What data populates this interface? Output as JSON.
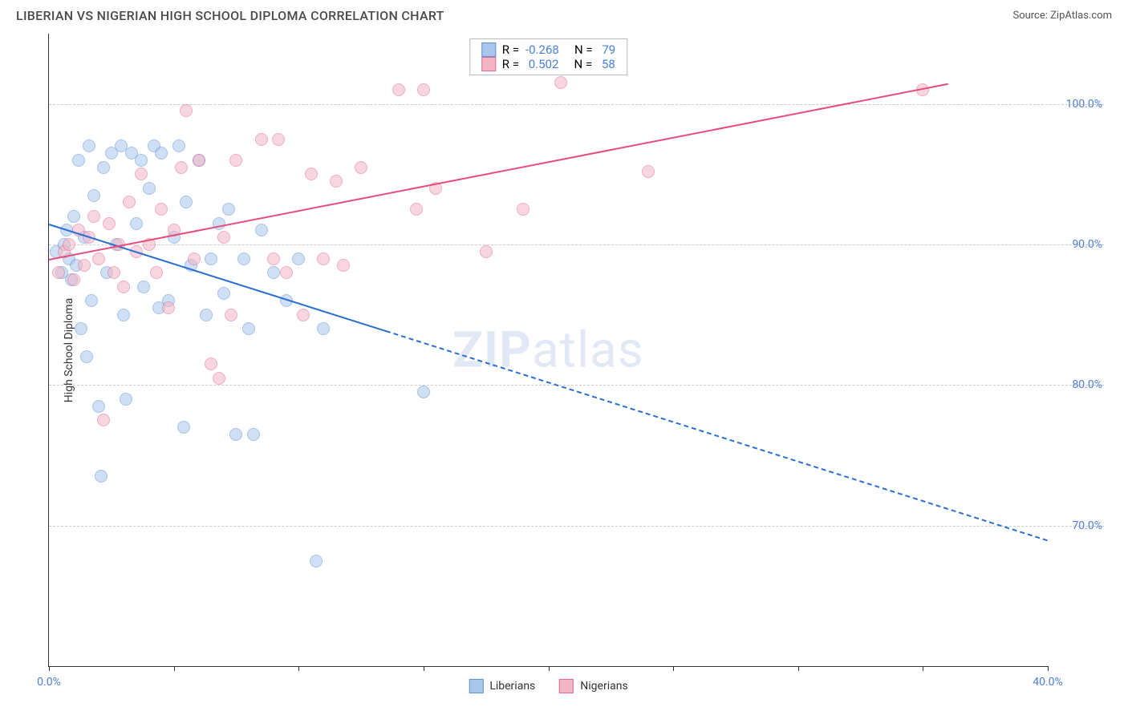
{
  "header": {
    "title": "LIBERIAN VS NIGERIAN HIGH SCHOOL DIPLOMA CORRELATION CHART",
    "source": "Source: ZipAtlas.com"
  },
  "chart": {
    "type": "scatter",
    "background_color": "#ffffff",
    "grid_color": "#cccccc",
    "axis_color": "#333333",
    "tick_label_color": "#4a80d6",
    "yaxis_title": "High School Diploma",
    "xlim": [
      0,
      40
    ],
    "ylim": [
      60,
      105
    ],
    "xticks": [
      0,
      5,
      10,
      15,
      20,
      25,
      30,
      35,
      40
    ],
    "xticklabels_shown": {
      "0": "0.0%",
      "40": "40.0%"
    },
    "yticks": [
      70,
      80,
      90,
      100
    ],
    "yticklabels": [
      "70.0%",
      "80.0%",
      "90.0%",
      "100.0%"
    ],
    "marker_radius": 8,
    "marker_opacity": 0.55,
    "series": [
      {
        "name": "Liberians",
        "fill": "#a8c5ec",
        "stroke": "#5f93d6",
        "R": "-0.268",
        "N": "79",
        "trend": {
          "x1": 0,
          "y1": 91.5,
          "x2": 40,
          "y2": 69.0,
          "solid_until_x": 13.5,
          "color": "#2b6fd0",
          "width": 2
        },
        "points": [
          [
            0.3,
            89.5
          ],
          [
            0.5,
            88.0
          ],
          [
            0.6,
            90.0
          ],
          [
            0.7,
            91.0
          ],
          [
            0.8,
            89.0
          ],
          [
            0.9,
            87.5
          ],
          [
            1.0,
            92.0
          ],
          [
            1.1,
            88.5
          ],
          [
            1.2,
            96.0
          ],
          [
            1.3,
            84.0
          ],
          [
            1.4,
            90.5
          ],
          [
            1.5,
            82.0
          ],
          [
            1.6,
            97.0
          ],
          [
            1.7,
            86.0
          ],
          [
            1.8,
            93.5
          ],
          [
            2.0,
            78.5
          ],
          [
            2.1,
            73.5
          ],
          [
            2.2,
            95.5
          ],
          [
            2.3,
            88.0
          ],
          [
            2.5,
            96.5
          ],
          [
            2.7,
            90.0
          ],
          [
            2.9,
            97.0
          ],
          [
            3.0,
            85.0
          ],
          [
            3.1,
            79.0
          ],
          [
            3.3,
            96.5
          ],
          [
            3.5,
            91.5
          ],
          [
            3.7,
            96.0
          ],
          [
            3.8,
            87.0
          ],
          [
            4.0,
            94.0
          ],
          [
            4.2,
            97.0
          ],
          [
            4.4,
            85.5
          ],
          [
            4.5,
            96.5
          ],
          [
            4.8,
            86.0
          ],
          [
            5.0,
            90.5
          ],
          [
            5.2,
            97.0
          ],
          [
            5.4,
            77.0
          ],
          [
            5.5,
            93.0
          ],
          [
            5.7,
            88.5
          ],
          [
            6.0,
            96.0
          ],
          [
            6.3,
            85.0
          ],
          [
            6.5,
            89.0
          ],
          [
            6.8,
            91.5
          ],
          [
            7.0,
            86.5
          ],
          [
            7.2,
            92.5
          ],
          [
            7.5,
            76.5
          ],
          [
            7.8,
            89.0
          ],
          [
            8.0,
            84.0
          ],
          [
            8.2,
            76.5
          ],
          [
            8.5,
            91.0
          ],
          [
            9.0,
            88.0
          ],
          [
            9.5,
            86.0
          ],
          [
            10.0,
            89.0
          ],
          [
            10.7,
            67.5
          ],
          [
            11.0,
            84.0
          ],
          [
            15.0,
            79.5
          ]
        ]
      },
      {
        "name": "Nigerians",
        "fill": "#f2b6c6",
        "stroke": "#e26b8f",
        "R": "0.502",
        "N": "58",
        "trend": {
          "x1": 0,
          "y1": 89.0,
          "x2": 36,
          "y2": 101.5,
          "color": "#e84d7a",
          "width": 2
        },
        "points": [
          [
            0.4,
            88.0
          ],
          [
            0.6,
            89.5
          ],
          [
            0.8,
            90.0
          ],
          [
            1.0,
            87.5
          ],
          [
            1.2,
            91.0
          ],
          [
            1.4,
            88.5
          ],
          [
            1.6,
            90.5
          ],
          [
            1.8,
            92.0
          ],
          [
            2.0,
            89.0
          ],
          [
            2.2,
            77.5
          ],
          [
            2.4,
            91.5
          ],
          [
            2.6,
            88.0
          ],
          [
            2.8,
            90.0
          ],
          [
            3.0,
            87.0
          ],
          [
            3.2,
            93.0
          ],
          [
            3.5,
            89.5
          ],
          [
            3.7,
            95.0
          ],
          [
            4.0,
            90.0
          ],
          [
            4.3,
            88.0
          ],
          [
            4.5,
            92.5
          ],
          [
            4.8,
            85.5
          ],
          [
            5.0,
            91.0
          ],
          [
            5.3,
            95.5
          ],
          [
            5.5,
            99.5
          ],
          [
            5.8,
            89.0
          ],
          [
            6.0,
            96.0
          ],
          [
            6.5,
            81.5
          ],
          [
            6.8,
            80.5
          ],
          [
            7.0,
            90.5
          ],
          [
            7.3,
            85.0
          ],
          [
            7.5,
            96.0
          ],
          [
            8.5,
            97.5
          ],
          [
            9.0,
            89.0
          ],
          [
            9.2,
            97.5
          ],
          [
            9.5,
            88.0
          ],
          [
            10.2,
            85.0
          ],
          [
            10.5,
            95.0
          ],
          [
            11.0,
            89.0
          ],
          [
            11.5,
            94.5
          ],
          [
            11.8,
            88.5
          ],
          [
            12.5,
            95.5
          ],
          [
            14.0,
            101.0
          ],
          [
            14.7,
            92.5
          ],
          [
            15.0,
            101.0
          ],
          [
            15.5,
            94.0
          ],
          [
            17.5,
            89.5
          ],
          [
            19.0,
            92.5
          ],
          [
            20.5,
            101.5
          ],
          [
            24.0,
            95.2
          ],
          [
            35.0,
            101.0
          ]
        ]
      }
    ],
    "legend_top": [
      {
        "swatch_fill": "#a8c5ec",
        "swatch_stroke": "#5f93d6",
        "R_label": "R =",
        "R": "-0.268",
        "N_label": "N =",
        "N": "79"
      },
      {
        "swatch_fill": "#f2b6c6",
        "swatch_stroke": "#e26b8f",
        "R_label": "R =",
        "R": " 0.502",
        "N_label": "N =",
        "N": "58"
      }
    ],
    "legend_bottom": [
      {
        "swatch_fill": "#a8c5ec",
        "swatch_stroke": "#5f93d6",
        "label": "Liberians"
      },
      {
        "swatch_fill": "#f2b6c6",
        "swatch_stroke": "#e26b8f",
        "label": "Nigerians"
      }
    ],
    "watermark_bold": "ZIP",
    "watermark_rest": "atlas"
  }
}
